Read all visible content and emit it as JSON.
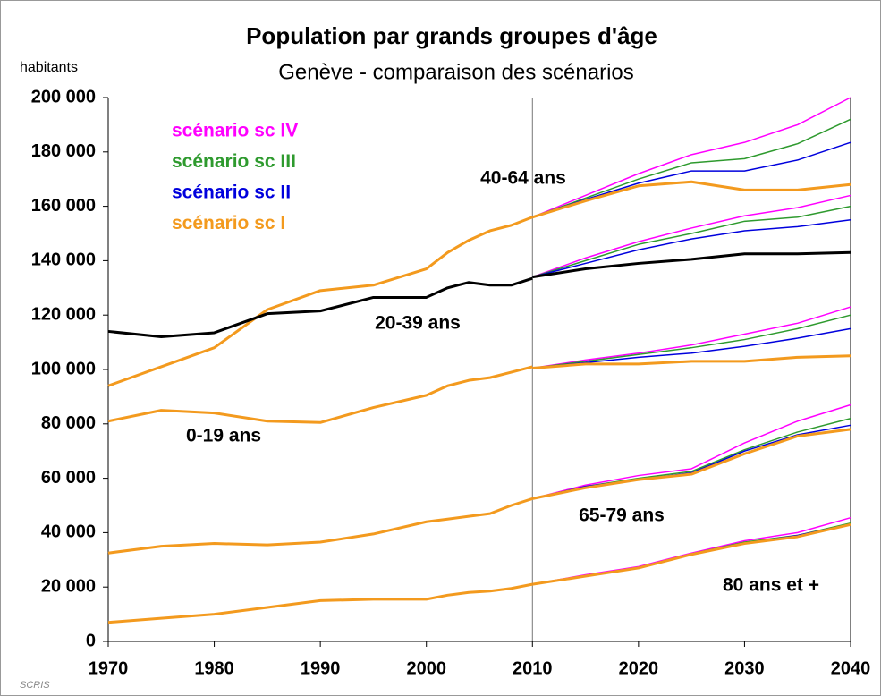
{
  "chart_data": {
    "type": "line",
    "title": "Population par grands groupes d'âge",
    "subtitle": "Genève - comparaison des scénarios",
    "y_label": "habitants",
    "source": "SCRIS",
    "xlim": [
      1970,
      2040
    ],
    "xticks": [
      1970,
      1980,
      1990,
      2000,
      2010,
      2020,
      2030,
      2040
    ],
    "ylim": [
      0,
      200000
    ],
    "yticks": [
      0,
      {
        "value": 20000,
        "label": "20 000"
      },
      {
        "value": 40000,
        "label": "40 000"
      },
      {
        "value": 60000,
        "label": "60 000"
      },
      {
        "value": 80000,
        "label": "80 000"
      },
      {
        "value": 100000,
        "label": "100 000"
      },
      {
        "value": 120000,
        "label": "120 000"
      },
      {
        "value": 140000,
        "label": "140 000"
      },
      {
        "value": 160000,
        "label": "160 000"
      },
      {
        "value": 180000,
        "label": "180 000"
      },
      {
        "value": 200000,
        "label": "200 000"
      }
    ],
    "divider_x": 2010,
    "legend": [
      {
        "name": "scénario sc IV",
        "color": "#ff00ff"
      },
      {
        "name": "scénario sc III",
        "color": "#2e9a2e"
      },
      {
        "name": "scénario sc II",
        "color": "#0000dd"
      },
      {
        "name": "scénario sc I",
        "color": "#f39a1e"
      }
    ],
    "history_x": [
      1970,
      1975,
      1980,
      1985,
      1990,
      1995,
      2000,
      2002,
      2004,
      2006,
      2008,
      2010
    ],
    "projection_x": [
      2010,
      2015,
      2020,
      2025,
      2030,
      2035,
      2040
    ],
    "groups": [
      {
        "label": "40-64 ans",
        "color": "#f39a1e",
        "history": [
          94000,
          101000,
          108000,
          122000,
          129000,
          131000,
          137000,
          143000,
          147500,
          151000,
          153000,
          156000
        ],
        "scenarios": [
          {
            "color": "#f39a1e",
            "values": [
              156000,
              162000,
              167500,
              169000,
              166000,
              166000,
              168000
            ]
          },
          {
            "color": "#0000dd",
            "values": [
              156000,
              162500,
              168500,
              173000,
              173000,
              177000,
              183500
            ]
          },
          {
            "color": "#2e9a2e",
            "values": [
              156000,
              163000,
              170000,
              176000,
              177500,
              183000,
              192000
            ]
          },
          {
            "color": "#ff00ff",
            "values": [
              156000,
              164000,
              172000,
              179000,
              183500,
              190000,
              200000
            ]
          }
        ]
      },
      {
        "label": "20-39 ans",
        "color": "#000000",
        "history": [
          114000,
          112000,
          113500,
          120500,
          121500,
          126500,
          126500,
          130000,
          132000,
          131000,
          131000,
          133500
        ],
        "scenarios": [
          {
            "color": "#000000",
            "values": [
              134000,
              137000,
              139000,
              140500,
              142500,
              142500,
              143000
            ]
          },
          {
            "color": "#0000dd",
            "values": [
              134000,
              139000,
              144000,
              148000,
              151000,
              152500,
              155000
            ]
          },
          {
            "color": "#2e9a2e",
            "values": [
              134000,
              140000,
              146000,
              150000,
              154500,
              156000,
              160000
            ]
          },
          {
            "color": "#ff00ff",
            "values": [
              134000,
              141000,
              147000,
              152000,
              156500,
              159500,
              164000
            ]
          }
        ]
      },
      {
        "label": "0-19 ans",
        "color": "#f39a1e",
        "history": [
          81000,
          85000,
          84000,
          81000,
          80500,
          86000,
          90500,
          94000,
          96000,
          97000,
          99000,
          101000
        ],
        "scenarios": [
          {
            "color": "#f39a1e",
            "values": [
              100500,
              102000,
              102000,
              103000,
              103000,
              104500,
              105000
            ]
          },
          {
            "color": "#0000dd",
            "values": [
              100500,
              102500,
              104500,
              106000,
              108500,
              111500,
              115000
            ]
          },
          {
            "color": "#2e9a2e",
            "values": [
              100500,
              103000,
              105500,
              108000,
              111000,
              115000,
              120000
            ]
          },
          {
            "color": "#ff00ff",
            "values": [
              100500,
              103500,
              106000,
              109000,
              113000,
              117000,
              123000
            ]
          }
        ]
      },
      {
        "label": "65-79 ans",
        "color": "#f39a1e",
        "history": [
          32500,
          35000,
          36000,
          35500,
          36500,
          39500,
          44000,
          45000,
          46000,
          47000,
          50000,
          52500
        ],
        "scenarios": [
          {
            "color": "#f39a1e",
            "values": [
              52500,
              56500,
              59500,
              61500,
              69000,
              75500,
              78000
            ]
          },
          {
            "color": "#0000dd",
            "values": [
              52500,
              57000,
              59500,
              62000,
              70000,
              76000,
              79500
            ]
          },
          {
            "color": "#2e9a2e",
            "values": [
              52500,
              57000,
              60000,
              62500,
              70500,
              77000,
              82000
            ]
          },
          {
            "color": "#ff00ff",
            "values": [
              52500,
              57500,
              61000,
              63500,
              73000,
              81000,
              87000
            ]
          }
        ]
      },
      {
        "label": "80 ans et +",
        "color": "#f39a1e",
        "history": [
          7000,
          8500,
          10000,
          12500,
          15000,
          15500,
          15500,
          17000,
          18000,
          18500,
          19500,
          21000
        ],
        "scenarios": [
          {
            "color": "#f39a1e",
            "values": [
              21000,
              24000,
              27000,
              32000,
              36000,
              38500,
              43000
            ]
          },
          {
            "color": "#0000dd",
            "values": [
              21000,
              24000,
              27000,
              32000,
              36000,
              39000,
              43000
            ]
          },
          {
            "color": "#2e9a2e",
            "values": [
              21000,
              24200,
              27200,
              32200,
              36500,
              39000,
              43500
            ]
          },
          {
            "color": "#ff00ff",
            "values": [
              21000,
              24500,
              27500,
              32500,
              37000,
              40000,
              45500
            ]
          }
        ]
      }
    ]
  }
}
